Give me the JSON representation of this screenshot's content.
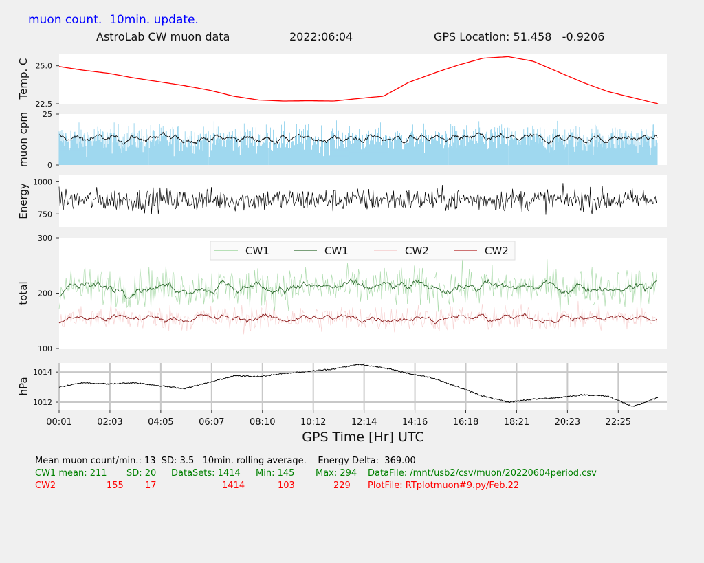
{
  "header": {
    "title": "muon count.  10min. update.",
    "station": "AstroLab CW muon data",
    "date": "2022:06:04",
    "gps": "GPS Location: 51.458   -0.9206"
  },
  "colors": {
    "background": "#f0f0f0",
    "title": "#0000ff",
    "temperature": "#ff0000",
    "muon_bars": "#87ceeb",
    "muon_avg": "#000000",
    "energy": "#000000",
    "cw1": "#008000",
    "cw2": "#cc0000",
    "pressure": "#000000",
    "stats_cw1": "#008000",
    "stats_cw2": "#ff0000"
  },
  "chart_data": [
    {
      "id": "temperature",
      "type": "line",
      "ylabel": "Temp. C",
      "ylim": [
        22.5,
        25.8
      ],
      "yticks": [
        "25.0",
        "22.5"
      ],
      "x": [
        0,
        1,
        2,
        3,
        4,
        5,
        6,
        7,
        8,
        9,
        10,
        11,
        12,
        13,
        14,
        15,
        16,
        17,
        18,
        19,
        20,
        21,
        22,
        23,
        24
      ],
      "series": [
        {
          "values": [
            24.95,
            24.7,
            24.5,
            24.2,
            23.95,
            23.7,
            23.4,
            23.0,
            22.75,
            22.68,
            22.7,
            22.68,
            22.85,
            23.0,
            23.9,
            24.5,
            25.05,
            25.5,
            25.6,
            25.3,
            24.6,
            23.9,
            23.3,
            22.9,
            22.5
          ]
        }
      ],
      "grid": false
    },
    {
      "id": "muon",
      "type": "bar",
      "ylabel": "muon cpm",
      "ylim": [
        0,
        25
      ],
      "yticks": [
        "25",
        "0"
      ],
      "mean": 13,
      "sd": 3.5,
      "series": [
        {
          "kind": "bars"
        },
        {
          "kind": "rolling-average"
        }
      ],
      "grid": false
    },
    {
      "id": "energy",
      "type": "line",
      "ylabel": "Energy",
      "ylim": [
        650,
        1050
      ],
      "yticks": [
        "1000",
        "750"
      ],
      "mean": 860,
      "series": [
        {
          "kind": "raw"
        }
      ],
      "grid": false
    },
    {
      "id": "total",
      "type": "line",
      "ylabel": "total",
      "ylim": [
        100,
        300
      ],
      "yticks": [
        "300",
        "200",
        "100"
      ],
      "legend": {
        "placement": "top-center",
        "entries": [
          "CW1",
          "CW1",
          "CW2",
          "CW2"
        ]
      },
      "series": [
        {
          "name": "CW1",
          "kind": "raw",
          "mean": 211,
          "sd": 20
        },
        {
          "name": "CW1",
          "kind": "average",
          "mean": 211
        },
        {
          "name": "CW2",
          "kind": "raw",
          "mean": 155,
          "sd": 17
        },
        {
          "name": "CW2",
          "kind": "average",
          "mean": 155
        }
      ],
      "grid": false
    },
    {
      "id": "pressure",
      "type": "line",
      "ylabel": "hPa",
      "ylim": [
        1011.5,
        1014.6
      ],
      "yticks": [
        "1014",
        "1012"
      ],
      "x": [
        0,
        1,
        2,
        3,
        4,
        5,
        6,
        7,
        8,
        9,
        10,
        11,
        12,
        13,
        14,
        15,
        16,
        17,
        18,
        19,
        20,
        21,
        22,
        23,
        24
      ],
      "series": [
        {
          "values": [
            1013.0,
            1013.3,
            1013.2,
            1013.3,
            1013.1,
            1012.9,
            1013.3,
            1013.75,
            1013.7,
            1013.9,
            1014.05,
            1014.2,
            1014.5,
            1014.3,
            1013.9,
            1013.6,
            1013.0,
            1012.4,
            1012.0,
            1012.2,
            1012.3,
            1012.5,
            1012.4,
            1011.7,
            1012.3
          ]
        }
      ],
      "grid": true
    }
  ],
  "xaxis": {
    "label": "GPS Time  [Hr] UTC",
    "ticks": [
      "00:01",
      "02:03",
      "04:05",
      "06:07",
      "08:10",
      "10:12",
      "12:14",
      "14:16",
      "16:18",
      "18:21",
      "20:23",
      "22:25"
    ]
  },
  "stats": {
    "line1": "Mean muon count/min.: 13  SD: 3.5   10min. rolling average.    Energy Delta:  369.00",
    "cw1": {
      "label": "CW1 mean: 211",
      "sd": "SD: 20",
      "datasets": "DataSets: 1414",
      "min": "Min: 145",
      "max": "Max: 294",
      "file": "DataFile: /mnt/usb2/csv/muon/20220604period.csv"
    },
    "cw2": {
      "label": "CW2",
      "mean": "155",
      "sd": "17",
      "datasets": "1414",
      "min": "103",
      "max": "229",
      "file": "PlotFile: RTplotmuon#9.py/Feb.22"
    }
  }
}
